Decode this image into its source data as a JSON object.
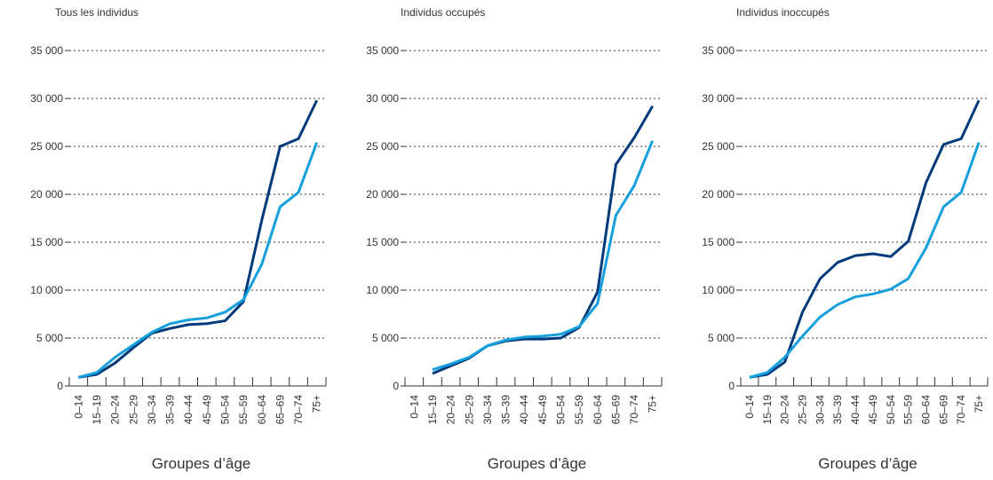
{
  "chart_data": [
    {
      "type": "line",
      "title": "Tous les individus",
      "xlabel": "Groupes d’âge",
      "ylabel": "",
      "ylim": [
        0,
        35000
      ],
      "yticks": [
        0,
        5000,
        10000,
        15000,
        20000,
        25000,
        30000,
        35000
      ],
      "ytick_labels": [
        "0",
        "5 000",
        "10 000",
        "15 000",
        "20 000",
        "25 000",
        "30 000",
        "35 000"
      ],
      "categories": [
        "0–14",
        "15–19",
        "20–24",
        "25–29",
        "30–34",
        "35–39",
        "40–44",
        "45–49",
        "50–54",
        "55–59",
        "60–64",
        "65–69",
        "70–74",
        "75+"
      ],
      "grid": true,
      "series": [
        {
          "color": "#003a7a",
          "values": [
            900,
            1200,
            2400,
            4000,
            5500,
            6000,
            6400,
            6500,
            6800,
            8800,
            17300,
            25000,
            25800,
            29800
          ]
        },
        {
          "color": "#13a0dc",
          "values": [
            900,
            1400,
            3000,
            4300,
            5600,
            6500,
            6900,
            7100,
            7700,
            9000,
            12700,
            18700,
            20200,
            25400
          ]
        }
      ]
    },
    {
      "type": "line",
      "title": "Individus occupés",
      "xlabel": "Groupes d’âge",
      "ylabel": "",
      "ylim": [
        0,
        35000
      ],
      "yticks": [
        0,
        5000,
        10000,
        15000,
        20000,
        25000,
        30000,
        35000
      ],
      "ytick_labels": [
        "0",
        "5 000",
        "10 000",
        "15 000",
        "20 000",
        "25 000",
        "30 000",
        "35 000"
      ],
      "categories": [
        "0–14",
        "15–19",
        "20–24",
        "25–29",
        "30–34",
        "35–39",
        "40–44",
        "45–49",
        "50–54",
        "55–59",
        "60–64",
        "65–69",
        "70–74",
        "75+"
      ],
      "grid": true,
      "series": [
        {
          "color": "#003a7a",
          "values": [
            null,
            1300,
            2100,
            2900,
            4200,
            4700,
            4900,
            4900,
            5000,
            6100,
            9800,
            23100,
            25900,
            29200
          ]
        },
        {
          "color": "#13a0dc",
          "values": [
            null,
            1700,
            2300,
            3000,
            4200,
            4800,
            5100,
            5200,
            5400,
            6200,
            8600,
            17800,
            20900,
            25600
          ]
        }
      ]
    },
    {
      "type": "line",
      "title": "Individus inoccupés",
      "xlabel": "Groupes d’âge",
      "ylabel": "",
      "ylim": [
        0,
        35000
      ],
      "yticks": [
        0,
        5000,
        10000,
        15000,
        20000,
        25000,
        30000,
        35000
      ],
      "ytick_labels": [
        "0",
        "5 000",
        "10 000",
        "15 000",
        "20 000",
        "25 000",
        "30 000",
        "35 000"
      ],
      "categories": [
        "0–14",
        "15–19",
        "20–24",
        "25–29",
        "30–34",
        "35–39",
        "40–44",
        "45–49",
        "50–54",
        "55–59",
        "60–64",
        "65–69",
        "70–74",
        "75+"
      ],
      "grid": true,
      "series": [
        {
          "color": "#003a7a",
          "values": [
            900,
            1200,
            2500,
            7700,
            11200,
            12900,
            13600,
            13800,
            13500,
            15100,
            21200,
            25200,
            25800,
            29800
          ]
        },
        {
          "color": "#13a0dc",
          "values": [
            900,
            1400,
            3000,
            5200,
            7200,
            8500,
            9300,
            9600,
            10100,
            11200,
            14400,
            18700,
            20200,
            25400
          ]
        }
      ]
    }
  ]
}
